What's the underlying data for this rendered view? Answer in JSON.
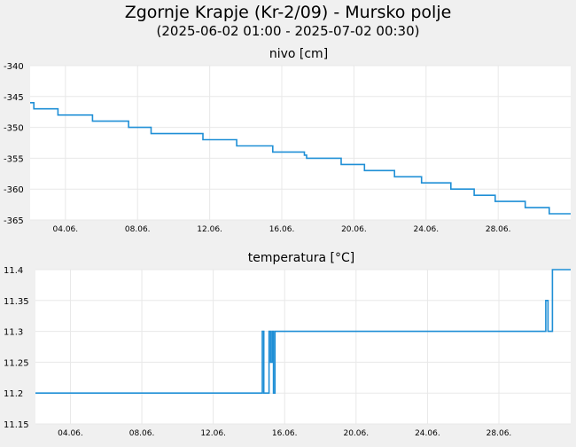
{
  "title": "Zgornje Krapje (Kr-2/09) - Mursko polje",
  "subtitle": "(2025-06-02 01:00 - 2025-07-02 00:30)",
  "colors": {
    "line": "#1f8fd6",
    "grid": "#e8e8e8",
    "plot_bg": "#ffffff",
    "page_bg": "#f0f0f0"
  },
  "chart_data": [
    {
      "type": "line",
      "title": "nivo [cm]",
      "x_range": [
        "2025-06-02 01:00",
        "2025-07-02 00:30"
      ],
      "ylim": [
        -365,
        -340
      ],
      "yticks": [
        -340,
        -345,
        -350,
        -355,
        -360,
        -365
      ],
      "ytick_labels": [
        "-340",
        "-345",
        "-350",
        "-355",
        "-360",
        "-365"
      ],
      "xticks": [
        "2025-06-04",
        "2025-06-08",
        "2025-06-12",
        "2025-06-16",
        "2025-06-20",
        "2025-06-24",
        "2025-06-28"
      ],
      "xtick_labels": [
        "04.06.",
        "08.06.",
        "12.06.",
        "16.06.",
        "20.06.",
        "24.06.",
        "28.06."
      ],
      "grid": true,
      "series": [
        {
          "x": [
            "2025-06-02 01:00",
            "2025-06-02 06:00",
            "2025-06-03 14:00",
            "2025-06-05 12:00",
            "2025-06-07 12:00",
            "2025-06-08 18:00",
            "2025-06-11 15:00",
            "2025-06-13 12:00",
            "2025-06-15 12:00",
            "2025-06-17 06:00",
            "2025-06-17 09:00",
            "2025-06-19 07:00",
            "2025-06-20 14:00",
            "2025-06-22 06:00",
            "2025-06-23 18:00",
            "2025-06-25 09:00",
            "2025-06-26 16:00",
            "2025-06-27 20:00",
            "2025-06-29 12:00",
            "2025-06-30 20:00",
            "2025-07-02 00:30"
          ],
          "y": [
            -346,
            -347,
            -348,
            -349,
            -350,
            -351,
            -352,
            -353,
            -354,
            -354.5,
            -355,
            -356,
            -357,
            -358,
            -359,
            -360,
            -361,
            -362,
            -363,
            -364,
            -364
          ]
        }
      ]
    },
    {
      "type": "line",
      "title": "temperatura [°C]",
      "x_range": [
        "2025-06-02 01:00",
        "2025-07-02 00:30"
      ],
      "ylim": [
        11.15,
        11.4
      ],
      "yticks": [
        11.4,
        11.35,
        11.3,
        11.25,
        11.2,
        11.15
      ],
      "ytick_labels": [
        "11.4",
        "11.35",
        "11.3",
        "11.25",
        "11.2",
        "11.15"
      ],
      "xticks": [
        "2025-06-04",
        "2025-06-08",
        "2025-06-12",
        "2025-06-16",
        "2025-06-20",
        "2025-06-24",
        "2025-06-28"
      ],
      "xtick_labels": [
        "04.06.",
        "08.06.",
        "12.06.",
        "16.06.",
        "20.06.",
        "24.06.",
        "28.06."
      ],
      "grid": true,
      "series": [
        {
          "x": [
            "2025-06-02 01:00",
            "2025-06-14 18:00",
            "2025-06-14 20:00",
            "2025-06-15 00:00",
            "2025-06-15 03:00",
            "2025-06-15 05:00",
            "2025-06-15 07:00",
            "2025-06-15 09:00",
            "2025-06-15 11:00",
            "2025-06-15 12:00",
            "2025-06-15 14:00",
            "2025-06-16 12:00",
            "2025-06-30 12:00",
            "2025-06-30 15:00",
            "2025-06-30 18:00",
            "2025-06-30 20:00",
            "2025-07-01 00:00",
            "2025-07-02 00:30"
          ],
          "y": [
            11.2,
            11.3,
            11.2,
            11.2,
            11.3,
            11.25,
            11.3,
            11.2,
            11.3,
            11.3,
            11.3,
            11.3,
            11.3,
            11.35,
            11.3,
            11.3,
            11.4,
            11.4
          ]
        }
      ]
    }
  ]
}
